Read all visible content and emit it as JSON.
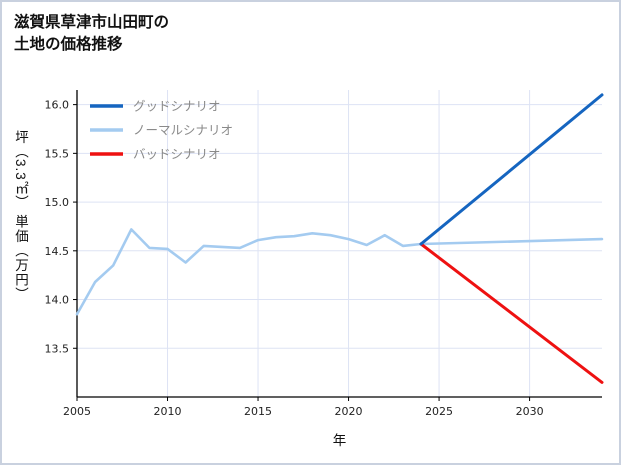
{
  "window": {
    "background": "#ffffff",
    "border_color": "#c9d1df"
  },
  "title": {
    "line1": "滋賀県草津市山田町の",
    "line2": "土地の価格推移"
  },
  "chart_data": {
    "type": "line",
    "title": "滋賀県草津市山田町の土地の価格推移",
    "xlabel": "年",
    "ylabel": "坪（3.3㎡） 単価（万円）",
    "xlim": [
      2005,
      2034
    ],
    "ylim": [
      13.0,
      16.15
    ],
    "xticks": [
      2005,
      2010,
      2015,
      2020,
      2025,
      2030
    ],
    "yticks": [
      "13.5",
      "14.0",
      "14.5",
      "15.0",
      "15.5",
      "16.0"
    ],
    "grid": true,
    "grid_color": "#dde3f4",
    "spine_color": "#000000",
    "legend_position": "upper-left",
    "series": [
      {
        "name": "グッドシナリオ",
        "color": "#1565c0",
        "line_width": 3,
        "x": [
          2024,
          2034
        ],
        "y": [
          14.57,
          16.1
        ]
      },
      {
        "name": "ノーマルシナリオ",
        "color": "#a4cbf0",
        "line_width": 2.6,
        "x": [
          2005,
          2006,
          2007,
          2008,
          2009,
          2010,
          2011,
          2012,
          2013,
          2014,
          2015,
          2016,
          2017,
          2018,
          2019,
          2020,
          2021,
          2022,
          2023,
          2024,
          2034
        ],
        "y": [
          13.85,
          14.18,
          14.35,
          14.72,
          14.53,
          14.52,
          14.38,
          14.55,
          14.54,
          14.53,
          14.61,
          14.64,
          14.65,
          14.68,
          14.66,
          14.62,
          14.56,
          14.66,
          14.55,
          14.57,
          14.62
        ]
      },
      {
        "name": "バッドシナリオ",
        "color": "#ee1111",
        "line_width": 3,
        "x": [
          2024,
          2034
        ],
        "y": [
          14.57,
          13.15
        ]
      }
    ]
  }
}
